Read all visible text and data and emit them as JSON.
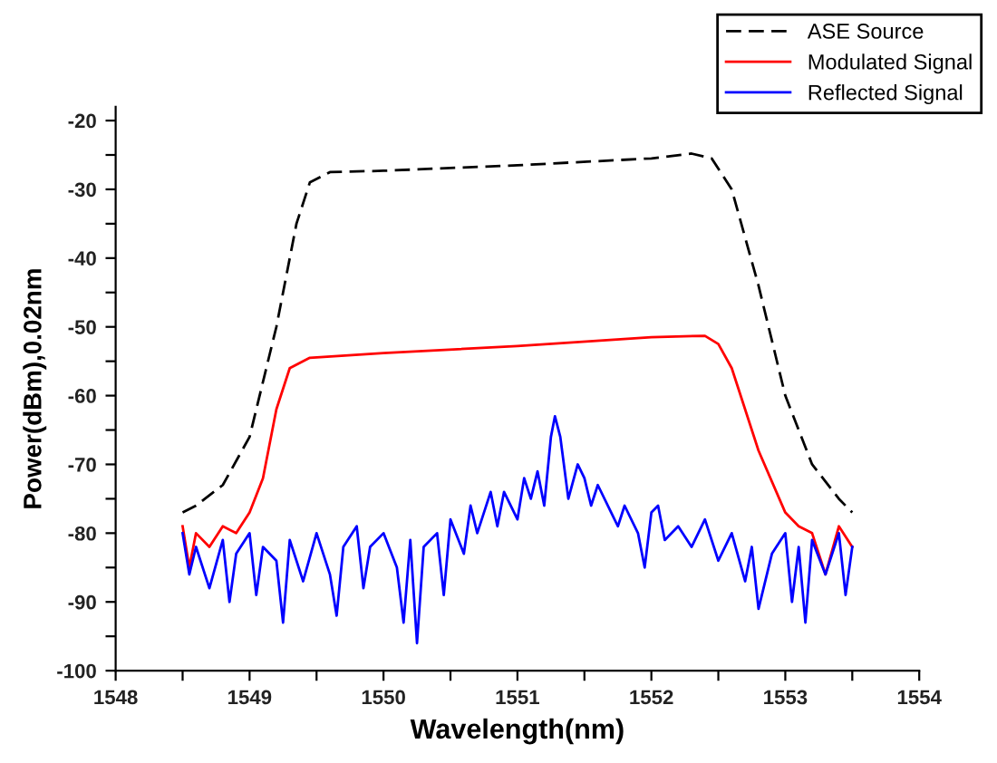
{
  "chart_data": {
    "type": "line",
    "xlabel": "Wavelength(nm)",
    "ylabel": "Power(dBm),0.02nm",
    "xlim": [
      1548,
      1554
    ],
    "xticks": [
      1548,
      {
        "value": 1548.5,
        "label": null
      },
      1549,
      {
        "value": 1549.5,
        "label": null
      },
      1550,
      {
        "value": 1550.5,
        "label": null
      },
      1551,
      {
        "value": 1551.5,
        "label": null
      },
      1552,
      {
        "value": 1552.5,
        "label": null
      },
      1553,
      {
        "value": 1553.5,
        "label": null
      },
      1554
    ],
    "ylim": [
      -100,
      -18
    ],
    "yticks": [
      -100,
      {
        "value": -95,
        "label": null
      },
      -90,
      {
        "value": -85,
        "label": null
      },
      -80,
      {
        "value": -75,
        "label": null
      },
      -70,
      {
        "value": -65,
        "label": null
      },
      -60,
      {
        "value": -55,
        "label": null
      },
      -50,
      {
        "value": -45,
        "label": null
      },
      -40,
      {
        "value": -35,
        "label": null
      },
      -30,
      {
        "value": -25,
        "label": null
      },
      -20
    ],
    "grid": false,
    "legend": "top right",
    "series": [
      {
        "name": "ASE Source",
        "color": "#000000",
        "line_style": "dashed",
        "x": [
          1548.5,
          1548.6,
          1548.8,
          1549.0,
          1549.2,
          1549.35,
          1549.45,
          1549.6,
          1550.0,
          1551.0,
          1552.0,
          1552.3,
          1552.45,
          1552.6,
          1552.8,
          1553.0,
          1553.2,
          1553.4,
          1553.5
        ],
        "values": [
          -77,
          -76,
          -73,
          -66,
          -50,
          -35,
          -29,
          -27.5,
          -27.3,
          -26.5,
          -25.5,
          -24.8,
          -25.5,
          -30,
          -44,
          -60,
          -70,
          -75,
          -77
        ]
      },
      {
        "name": "Modulated Signal",
        "color": "#ff0000",
        "line_style": "solid",
        "x": [
          1548.5,
          1548.55,
          1548.6,
          1548.7,
          1548.8,
          1548.9,
          1549.0,
          1549.1,
          1549.2,
          1549.3,
          1549.45,
          1550.0,
          1551.0,
          1552.0,
          1552.4,
          1552.5,
          1552.6,
          1552.8,
          1553.0,
          1553.1,
          1553.2,
          1553.3,
          1553.4,
          1553.5
        ],
        "values": [
          -79,
          -85,
          -80,
          -82,
          -79,
          -80,
          -77,
          -72,
          -62,
          -56,
          -54.5,
          -53.8,
          -52.8,
          -51.5,
          -51.3,
          -52.5,
          -56,
          -68,
          -77,
          -79,
          -80,
          -86,
          -79,
          -82
        ]
      },
      {
        "name": "Reflected Signal",
        "color": "#0000ff",
        "line_style": "solid",
        "x": [
          1548.5,
          1548.55,
          1548.6,
          1548.7,
          1548.8,
          1548.85,
          1548.9,
          1549.0,
          1549.05,
          1549.1,
          1549.2,
          1549.25,
          1549.3,
          1549.4,
          1549.5,
          1549.6,
          1549.65,
          1549.7,
          1549.8,
          1549.85,
          1549.9,
          1550.0,
          1550.1,
          1550.15,
          1550.2,
          1550.25,
          1550.3,
          1550.4,
          1550.45,
          1550.5,
          1550.6,
          1550.65,
          1550.7,
          1550.8,
          1550.85,
          1550.9,
          1551.0,
          1551.05,
          1551.1,
          1551.15,
          1551.2,
          1551.25,
          1551.28,
          1551.32,
          1551.38,
          1551.45,
          1551.5,
          1551.55,
          1551.6,
          1551.7,
          1551.75,
          1551.8,
          1551.9,
          1551.95,
          1552.0,
          1552.05,
          1552.1,
          1552.2,
          1552.3,
          1552.4,
          1552.5,
          1552.6,
          1552.7,
          1552.75,
          1552.8,
          1552.9,
          1553.0,
          1553.05,
          1553.1,
          1553.15,
          1553.2,
          1553.3,
          1553.4,
          1553.45,
          1553.5
        ],
        "values": [
          -80,
          -86,
          -82,
          -88,
          -81,
          -90,
          -83,
          -80,
          -89,
          -82,
          -84,
          -93,
          -81,
          -87,
          -80,
          -86,
          -92,
          -82,
          -79,
          -88,
          -82,
          -80,
          -85,
          -93,
          -81,
          -96,
          -82,
          -80,
          -89,
          -78,
          -83,
          -76,
          -80,
          -74,
          -79,
          -74,
          -78,
          -72,
          -75,
          -71,
          -76,
          -66,
          -63,
          -66,
          -75,
          -70,
          -72,
          -76,
          -73,
          -77,
          -79,
          -76,
          -80,
          -85,
          -77,
          -76,
          -81,
          -79,
          -82,
          -78,
          -84,
          -80,
          -87,
          -82,
          -91,
          -83,
          -80,
          -90,
          -82,
          -93,
          -81,
          -86,
          -80,
          -89,
          -82
        ]
      }
    ]
  }
}
